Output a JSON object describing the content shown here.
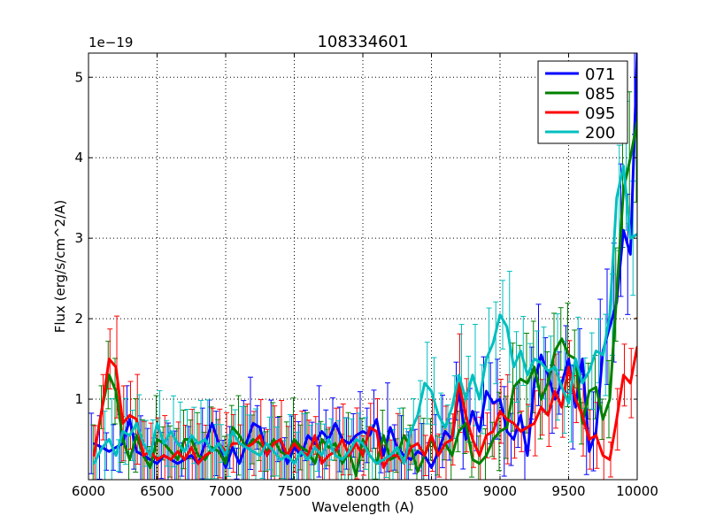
{
  "chart_data": {
    "type": "line",
    "title": "108334601",
    "xlabel": "Wavelength (A)",
    "ylabel": "Flux (erg/s/cm^2/A)",
    "y_offset_label": "1e−19",
    "xlim": [
      6000,
      10000
    ],
    "ylim": [
      0,
      5.3
    ],
    "xticks": [
      6000,
      6500,
      7000,
      7500,
      8000,
      8500,
      9000,
      9500,
      10000
    ],
    "yticks": [
      1,
      2,
      3,
      4,
      5
    ],
    "grid": true,
    "legend_position": "top-right",
    "series": [
      {
        "name": "071",
        "color": "#0000ff",
        "x": [
          6040,
          6100,
          6150,
          6200,
          6250,
          6300,
          6350,
          6400,
          6450,
          6500,
          6550,
          6600,
          6650,
          6700,
          6750,
          6800,
          6850,
          6900,
          6950,
          7000,
          7050,
          7100,
          7150,
          7200,
          7250,
          7300,
          7350,
          7400,
          7450,
          7500,
          7550,
          7600,
          7650,
          7700,
          7750,
          7800,
          7850,
          7900,
          7950,
          8000,
          8050,
          8100,
          8150,
          8200,
          8250,
          8300,
          8350,
          8400,
          8450,
          8500,
          8550,
          8600,
          8650,
          8700,
          8750,
          8800,
          8850,
          8900,
          8950,
          9000,
          9050,
          9100,
          9150,
          9200,
          9250,
          9300,
          9350,
          9400,
          9450,
          9500,
          9550,
          9600,
          9650,
          9700,
          9750,
          9800,
          9850,
          9900,
          9950,
          10000
        ],
        "y": [
          0.45,
          0.4,
          0.35,
          0.4,
          0.45,
          0.75,
          0.35,
          0.3,
          0.25,
          0.2,
          0.3,
          0.25,
          0.2,
          0.25,
          0.3,
          0.2,
          0.45,
          0.7,
          0.45,
          0.15,
          0.4,
          0.2,
          0.45,
          0.7,
          0.65,
          0.3,
          0.45,
          0.5,
          0.2,
          0.4,
          0.3,
          0.55,
          0.45,
          0.6,
          0.5,
          0.7,
          0.5,
          0.45,
          0.55,
          0.6,
          0.55,
          0.75,
          0.3,
          0.65,
          0.4,
          0.3,
          0.25,
          0.35,
          0.3,
          0.15,
          0.35,
          0.6,
          0.5,
          1.1,
          0.5,
          0.85,
          0.6,
          1.1,
          0.95,
          1.0,
          0.6,
          0.5,
          0.8,
          0.3,
          1.2,
          1.55,
          1.3,
          1.0,
          1.2,
          1.5,
          0.9,
          1.5,
          0.35,
          0.6,
          1.6,
          1.9,
          2.2,
          3.1,
          2.8,
          5.3
        ]
      },
      {
        "name": "085",
        "color": "#008000",
        "x": [
          6040,
          6100,
          6150,
          6200,
          6250,
          6300,
          6350,
          6400,
          6450,
          6500,
          6550,
          6600,
          6650,
          6700,
          6750,
          6800,
          6850,
          6900,
          6950,
          7000,
          7050,
          7100,
          7150,
          7200,
          7250,
          7300,
          7350,
          7400,
          7450,
          7500,
          7550,
          7600,
          7650,
          7700,
          7750,
          7800,
          7850,
          7900,
          7950,
          8000,
          8050,
          8100,
          8150,
          8200,
          8250,
          8300,
          8350,
          8400,
          8450,
          8500,
          8550,
          8600,
          8650,
          8700,
          8750,
          8800,
          8850,
          8900,
          8950,
          9000,
          9050,
          9100,
          9150,
          9200,
          9250,
          9300,
          9350,
          9400,
          9450,
          9500,
          9550,
          9600,
          9650,
          9700,
          9750,
          9800,
          9850,
          9900,
          9950,
          10000
        ],
        "y": [
          0.3,
          0.9,
          1.3,
          1.1,
          0.5,
          0.25,
          0.55,
          0.3,
          0.15,
          0.5,
          0.45,
          0.35,
          0.25,
          0.5,
          0.5,
          0.3,
          0.25,
          0.4,
          0.35,
          0.2,
          0.65,
          0.55,
          0.4,
          0.5,
          0.45,
          0.35,
          0.5,
          0.35,
          0.3,
          0.5,
          0.4,
          0.35,
          0.2,
          0.5,
          0.4,
          0.45,
          0.2,
          0.35,
          0.05,
          0.5,
          0.3,
          0.2,
          0.55,
          0.25,
          0.3,
          0.55,
          0.4,
          0.1,
          0.3,
          0.5,
          0.3,
          0.45,
          0.3,
          0.6,
          0.7,
          0.25,
          0.2,
          0.3,
          0.5,
          0.6,
          0.65,
          1.15,
          1.25,
          1.2,
          1.4,
          1.0,
          1.2,
          1.6,
          1.75,
          1.55,
          1.5,
          0.7,
          1.1,
          1.15,
          0.75,
          1.0,
          2.3,
          3.6,
          4.0,
          4.45
        ]
      },
      {
        "name": "095",
        "color": "#ff0000",
        "x": [
          6040,
          6100,
          6150,
          6200,
          6250,
          6300,
          6350,
          6400,
          6450,
          6500,
          6550,
          6600,
          6650,
          6700,
          6750,
          6800,
          6850,
          6900,
          6950,
          7000,
          7050,
          7100,
          7150,
          7200,
          7250,
          7300,
          7350,
          7400,
          7450,
          7500,
          7550,
          7600,
          7650,
          7700,
          7750,
          7800,
          7850,
          7900,
          7950,
          8000,
          8050,
          8100,
          8150,
          8200,
          8250,
          8300,
          8350,
          8400,
          8450,
          8500,
          8550,
          8600,
          8650,
          8700,
          8750,
          8800,
          8850,
          8900,
          8950,
          9000,
          9050,
          9100,
          9150,
          9200,
          9250,
          9300,
          9350,
          9400,
          9450,
          9500,
          9550,
          9600,
          9650,
          9700,
          9750,
          9800,
          9850,
          9900,
          9950,
          10000
        ],
        "y": [
          0.3,
          0.9,
          1.5,
          1.4,
          0.7,
          0.8,
          0.75,
          0.3,
          0.35,
          0.25,
          0.3,
          0.25,
          0.35,
          0.25,
          0.4,
          0.2,
          0.3,
          0.35,
          0.45,
          0.35,
          0.45,
          0.45,
          0.4,
          0.45,
          0.55,
          0.3,
          0.45,
          0.5,
          0.3,
          0.45,
          0.35,
          0.3,
          0.55,
          0.2,
          0.3,
          0.35,
          0.5,
          0.3,
          0.45,
          0.3,
          0.65,
          0.6,
          0.15,
          0.3,
          0.3,
          0.2,
          0.4,
          0.45,
          0.3,
          0.55,
          0.3,
          0.45,
          0.5,
          1.2,
          0.8,
          0.5,
          0.3,
          0.55,
          0.6,
          0.85,
          0.75,
          0.7,
          0.6,
          0.65,
          0.7,
          0.9,
          0.8,
          1.1,
          0.9,
          1.4,
          1.0,
          0.8,
          0.5,
          0.55,
          0.3,
          0.25,
          0.75,
          1.3,
          1.2,
          1.65
        ]
      },
      {
        "name": "200",
        "color": "#00bfbf",
        "x": [
          6040,
          6100,
          6150,
          6200,
          6250,
          6300,
          6350,
          6400,
          6450,
          6500,
          6550,
          6600,
          6650,
          6700,
          6750,
          6800,
          6850,
          6900,
          6950,
          7000,
          7050,
          7100,
          7150,
          7200,
          7250,
          7300,
          7350,
          7400,
          7450,
          7500,
          7550,
          7600,
          7650,
          7700,
          7750,
          7800,
          7850,
          7900,
          7950,
          8000,
          8050,
          8100,
          8150,
          8200,
          8250,
          8300,
          8350,
          8400,
          8450,
          8500,
          8550,
          8600,
          8650,
          8700,
          8750,
          8800,
          8850,
          8900,
          8950,
          9000,
          9050,
          9100,
          9150,
          9200,
          9250,
          9300,
          9350,
          9400,
          9450,
          9500,
          9550,
          9600,
          9650,
          9700,
          9750,
          9800,
          9850,
          9900,
          9950,
          10000
        ],
        "y": [
          0.2,
          0.4,
          0.5,
          0.3,
          0.6,
          0.55,
          0.7,
          0.45,
          0.3,
          0.7,
          0.45,
          0.6,
          0.45,
          0.35,
          0.55,
          0.45,
          0.5,
          0.35,
          0.45,
          0.3,
          0.6,
          0.45,
          0.4,
          0.35,
          0.3,
          0.45,
          0.35,
          0.25,
          0.3,
          0.2,
          0.35,
          0.25,
          0.4,
          0.3,
          0.5,
          0.3,
          0.25,
          0.35,
          0.5,
          0.45,
          0.3,
          0.2,
          0.25,
          0.3,
          0.4,
          0.2,
          0.6,
          0.8,
          1.2,
          1.1,
          0.8,
          0.65,
          0.9,
          1.3,
          1.0,
          1.3,
          1.0,
          1.5,
          1.7,
          2.05,
          1.9,
          1.4,
          1.6,
          1.3,
          1.5,
          1.45,
          1.35,
          1.4,
          1.15,
          0.95,
          1.5,
          1.2,
          1.35,
          1.6,
          1.55,
          2.05,
          3.5,
          3.9,
          3.0,
          3.05
        ]
      }
    ]
  }
}
